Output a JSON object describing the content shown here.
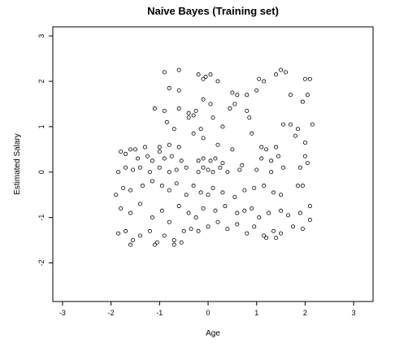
{
  "chart_data": {
    "type": "scatter",
    "title": "Naive Bayes (Training set)",
    "xlabel": "Age",
    "ylabel": "Estimated Salary",
    "xlim": [
      -3.2,
      3.4
    ],
    "ylim": [
      -2.85,
      3.2
    ],
    "xticks": [
      -3,
      -2,
      -1,
      0,
      1,
      2,
      3
    ],
    "yticks": [
      -2,
      -1,
      0,
      1,
      2,
      3
    ],
    "xtick_labels": [
      "-3",
      "-2",
      "-1",
      "0",
      "1",
      "2",
      "3"
    ],
    "ytick_labels": [
      "-2",
      "-1",
      "0",
      "1",
      "2",
      "3"
    ],
    "grid": false,
    "marker": "open-circle",
    "points": [
      [
        -0.9,
        2.2
      ],
      [
        -0.6,
        2.25
      ],
      [
        -0.2,
        2.15
      ],
      [
        -0.05,
        2.1
      ],
      [
        0.05,
        2.15
      ],
      [
        -0.1,
        2.05
      ],
      [
        -0.8,
        1.85
      ],
      [
        -0.6,
        1.8
      ],
      [
        0.2,
        2.0
      ],
      [
        1.05,
        2.05
      ],
      [
        1.15,
        2.0
      ],
      [
        1.4,
        2.15
      ],
      [
        1.5,
        2.25
      ],
      [
        1.6,
        2.2
      ],
      [
        2.0,
        2.05
      ],
      [
        2.1,
        2.05
      ],
      [
        -1.1,
        1.4
      ],
      [
        -0.9,
        1.35
      ],
      [
        -0.6,
        1.4
      ],
      [
        -0.4,
        1.3
      ],
      [
        -0.25,
        1.35
      ],
      [
        -0.1,
        1.6
      ],
      [
        0.05,
        1.5
      ],
      [
        0.5,
        1.75
      ],
      [
        0.6,
        1.7
      ],
      [
        0.8,
        1.7
      ],
      [
        1.0,
        1.8
      ],
      [
        1.7,
        1.7
      ],
      [
        1.95,
        1.55
      ],
      [
        2.05,
        1.7
      ],
      [
        -0.85,
        1.1
      ],
      [
        -0.7,
        0.95
      ],
      [
        -0.4,
        1.2
      ],
      [
        -0.3,
        1.25
      ],
      [
        -0.15,
        0.95
      ],
      [
        0.1,
        1.2
      ],
      [
        0.3,
        1.0
      ],
      [
        0.45,
        1.4
      ],
      [
        0.55,
        1.5
      ],
      [
        0.8,
        1.35
      ],
      [
        0.85,
        1.2
      ],
      [
        1.55,
        1.05
      ],
      [
        1.7,
        1.05
      ],
      [
        1.85,
        0.95
      ],
      [
        2.15,
        1.05
      ],
      [
        -1.5,
        0.5
      ],
      [
        -1.3,
        0.55
      ],
      [
        -1.0,
        0.55
      ],
      [
        -0.8,
        0.6
      ],
      [
        -0.6,
        0.55
      ],
      [
        -0.3,
        0.85
      ],
      [
        -0.1,
        0.75
      ],
      [
        0.2,
        0.6
      ],
      [
        0.5,
        0.5
      ],
      [
        0.9,
        0.85
      ],
      [
        1.1,
        0.55
      ],
      [
        1.2,
        0.5
      ],
      [
        1.4,
        0.55
      ],
      [
        1.8,
        0.8
      ],
      [
        2.0,
        0.65
      ],
      [
        -1.8,
        0.45
      ],
      [
        -1.7,
        0.4
      ],
      [
        -1.6,
        0.5
      ],
      [
        -1.45,
        0.3
      ],
      [
        -1.25,
        0.35
      ],
      [
        -1.15,
        0.25
      ],
      [
        -1.0,
        0.45
      ],
      [
        -0.9,
        0.3
      ],
      [
        -0.75,
        0.35
      ],
      [
        -0.55,
        0.25
      ],
      [
        -0.2,
        0.25
      ],
      [
        -0.1,
        0.3
      ],
      [
        0.05,
        0.25
      ],
      [
        0.15,
        0.3
      ],
      [
        0.3,
        0.2
      ],
      [
        0.7,
        0.15
      ],
      [
        1.1,
        0.3
      ],
      [
        1.3,
        0.25
      ],
      [
        1.45,
        0.35
      ],
      [
        2.0,
        0.35
      ],
      [
        -1.85,
        0.0
      ],
      [
        -1.7,
        0.1
      ],
      [
        -1.55,
        0.05
      ],
      [
        -1.4,
        0.1
      ],
      [
        -1.2,
        0.0
      ],
      [
        -1.0,
        0.1
      ],
      [
        -0.8,
        0.0
      ],
      [
        -0.65,
        0.05
      ],
      [
        -0.45,
        0.1
      ],
      [
        -0.2,
        0.0
      ],
      [
        -0.1,
        0.1
      ],
      [
        0.0,
        0.05
      ],
      [
        0.1,
        0.0
      ],
      [
        0.25,
        0.1
      ],
      [
        0.4,
        0.0
      ],
      [
        0.65,
        0.05
      ],
      [
        1.0,
        0.05
      ],
      [
        1.3,
        0.0
      ],
      [
        1.55,
        0.1
      ],
      [
        1.9,
        0.1
      ],
      [
        2.05,
        0.2
      ],
      [
        -1.9,
        -0.5
      ],
      [
        -1.75,
        -0.35
      ],
      [
        -1.6,
        -0.4
      ],
      [
        -1.35,
        -0.3
      ],
      [
        -1.15,
        -0.2
      ],
      [
        -0.95,
        -0.3
      ],
      [
        -0.8,
        -0.4
      ],
      [
        -0.65,
        -0.25
      ],
      [
        -0.45,
        -0.5
      ],
      [
        -0.3,
        -0.3
      ],
      [
        -0.15,
        -0.45
      ],
      [
        0.0,
        -0.5
      ],
      [
        0.1,
        -0.35
      ],
      [
        0.3,
        -0.45
      ],
      [
        0.55,
        -0.55
      ],
      [
        0.75,
        -0.4
      ],
      [
        0.95,
        -0.35
      ],
      [
        1.15,
        -0.3
      ],
      [
        1.35,
        -0.45
      ],
      [
        1.5,
        -0.5
      ],
      [
        1.85,
        -0.3
      ],
      [
        1.95,
        -0.3
      ],
      [
        -1.8,
        -0.8
      ],
      [
        -1.6,
        -0.9
      ],
      [
        -1.4,
        -0.7
      ],
      [
        -1.15,
        -1.0
      ],
      [
        -0.95,
        -0.85
      ],
      [
        -0.8,
        -1.1
      ],
      [
        -0.6,
        -0.75
      ],
      [
        -0.4,
        -0.9
      ],
      [
        -0.25,
        -1.0
      ],
      [
        -0.1,
        -0.8
      ],
      [
        0.15,
        -0.85
      ],
      [
        0.35,
        -0.75
      ],
      [
        0.6,
        -0.9
      ],
      [
        0.75,
        -0.85
      ],
      [
        0.9,
        -0.8
      ],
      [
        1.05,
        -1.0
      ],
      [
        1.25,
        -0.9
      ],
      [
        1.5,
        -0.85
      ],
      [
        1.65,
        -0.95
      ],
      [
        1.9,
        -0.9
      ],
      [
        2.1,
        -0.75
      ],
      [
        -1.85,
        -1.35
      ],
      [
        -1.7,
        -1.3
      ],
      [
        -1.55,
        -1.5
      ],
      [
        -1.4,
        -1.4
      ],
      [
        -1.2,
        -1.3
      ],
      [
        -1.05,
        -1.55
      ],
      [
        -0.9,
        -1.4
      ],
      [
        -0.7,
        -1.5
      ],
      [
        -0.5,
        -1.3
      ],
      [
        -0.35,
        -1.25
      ],
      [
        -0.2,
        -1.3
      ],
      [
        0.0,
        -1.2
      ],
      [
        0.2,
        -1.1
      ],
      [
        0.4,
        -1.25
      ],
      [
        0.6,
        -1.15
      ],
      [
        0.8,
        -1.35
      ],
      [
        0.95,
        -1.2
      ],
      [
        1.15,
        -1.4
      ],
      [
        1.35,
        -1.3
      ],
      [
        1.5,
        -1.35
      ],
      [
        1.75,
        -1.2
      ],
      [
        1.95,
        -1.25
      ],
      [
        2.1,
        -1.05
      ],
      [
        -1.6,
        -1.6
      ],
      [
        -1.1,
        -1.6
      ],
      [
        -0.7,
        -1.6
      ],
      [
        -0.55,
        -1.55
      ],
      [
        1.2,
        -1.45
      ],
      [
        1.4,
        -1.45
      ]
    ]
  }
}
